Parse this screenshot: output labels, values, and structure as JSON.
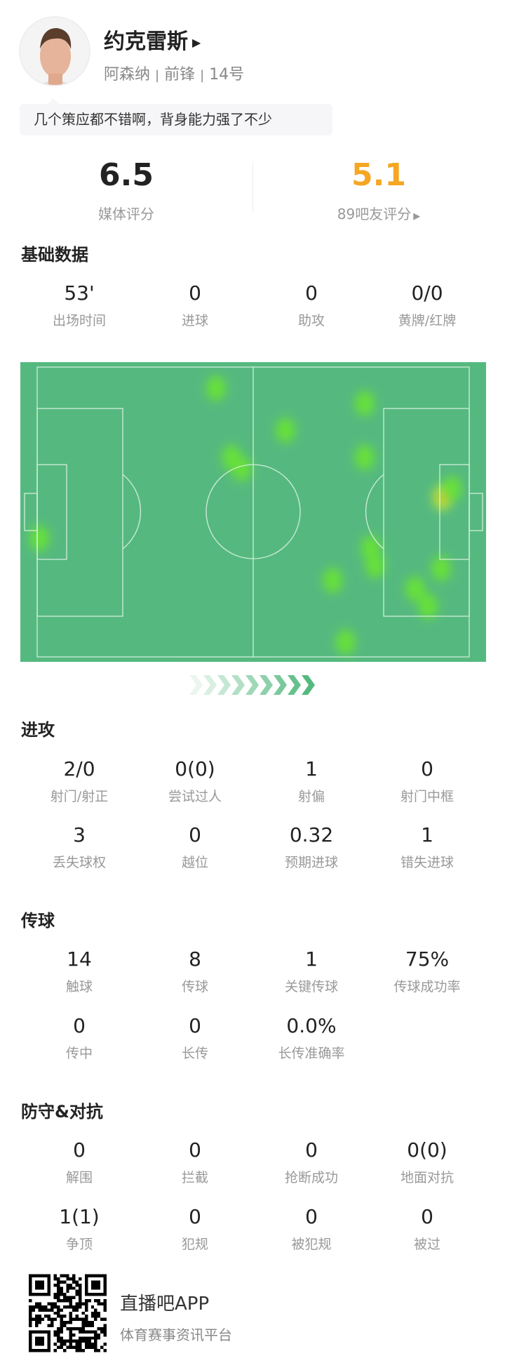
{
  "player": {
    "name": "约克雷斯",
    "team": "阿森纳",
    "position": "前锋",
    "number": "14号",
    "separator": "|",
    "comment": "几个策应都不错啊，背身能力强了不少"
  },
  "ratings": {
    "media_score": "6.5",
    "media_label": "媒体评分",
    "fan_score": "5.1",
    "fan_label": "89吧友评分",
    "fan_color": "#f5a623"
  },
  "sections": [
    {
      "title": "基础数据",
      "rows": [
        [
          {
            "v": "53'",
            "l": "出场时间"
          },
          {
            "v": "0",
            "l": "进球"
          },
          {
            "v": "0",
            "l": "助攻"
          },
          {
            "v": "0/0",
            "l": "黄牌/红牌"
          }
        ]
      ]
    },
    {
      "title": "进攻",
      "rows": [
        [
          {
            "v": "2/0",
            "l": "射门/射正"
          },
          {
            "v": "0(0)",
            "l": "尝试过人"
          },
          {
            "v": "1",
            "l": "射偏"
          },
          {
            "v": "0",
            "l": "射门中框"
          }
        ],
        [
          {
            "v": "3",
            "l": "丢失球权"
          },
          {
            "v": "0",
            "l": "越位"
          },
          {
            "v": "0.32",
            "l": "预期进球"
          },
          {
            "v": "1",
            "l": "错失进球"
          }
        ]
      ]
    },
    {
      "title": "传球",
      "rows": [
        [
          {
            "v": "14",
            "l": "触球"
          },
          {
            "v": "8",
            "l": "传球"
          },
          {
            "v": "1",
            "l": "关键传球"
          },
          {
            "v": "75%",
            "l": "传球成功率"
          }
        ],
        [
          {
            "v": "0",
            "l": "传中"
          },
          {
            "v": "0",
            "l": "长传"
          },
          {
            "v": "0.0%",
            "l": "长传准确率"
          }
        ]
      ]
    },
    {
      "title": "防守&对抗",
      "rows": [
        [
          {
            "v": "0",
            "l": "解围"
          },
          {
            "v": "0",
            "l": "拦截"
          },
          {
            "v": "0",
            "l": "抢断成功"
          },
          {
            "v": "0(0)",
            "l": "地面对抗"
          }
        ],
        [
          {
            "v": "1(1)",
            "l": "争顶"
          },
          {
            "v": "0",
            "l": "犯规"
          },
          {
            "v": "0",
            "l": "被犯规"
          },
          {
            "v": "0",
            "l": "被过"
          }
        ]
      ]
    }
  ],
  "heatmap": {
    "pitch_color": "#55b97f",
    "attack_direction": "right",
    "points": [
      [
        41.4,
        7.3,
        0.6
      ],
      [
        57.5,
        21.8,
        0.6
      ],
      [
        75.8,
        12.6,
        0.6
      ],
      [
        75.8,
        31.2,
        0.6
      ],
      [
        45.0,
        31.2,
        0.7
      ],
      [
        47.3,
        35.0,
        0.7
      ],
      [
        0.5,
        59.1,
        0.6
      ],
      [
        93.8,
        45.0,
        1.0
      ],
      [
        96,
        42,
        0.8
      ],
      [
        77.2,
        62.5,
        0.8
      ],
      [
        78.2,
        68.5,
        0.8
      ],
      [
        93.5,
        69.5,
        0.8
      ],
      [
        68.4,
        73.6,
        0.6
      ],
      [
        87.5,
        76.5,
        0.7
      ],
      [
        90.5,
        82.5,
        0.7
      ],
      [
        71.4,
        94.9,
        0.6
      ]
    ]
  },
  "footer": {
    "app_name": "直播吧APP",
    "tagline": "体育赛事资讯平台"
  }
}
